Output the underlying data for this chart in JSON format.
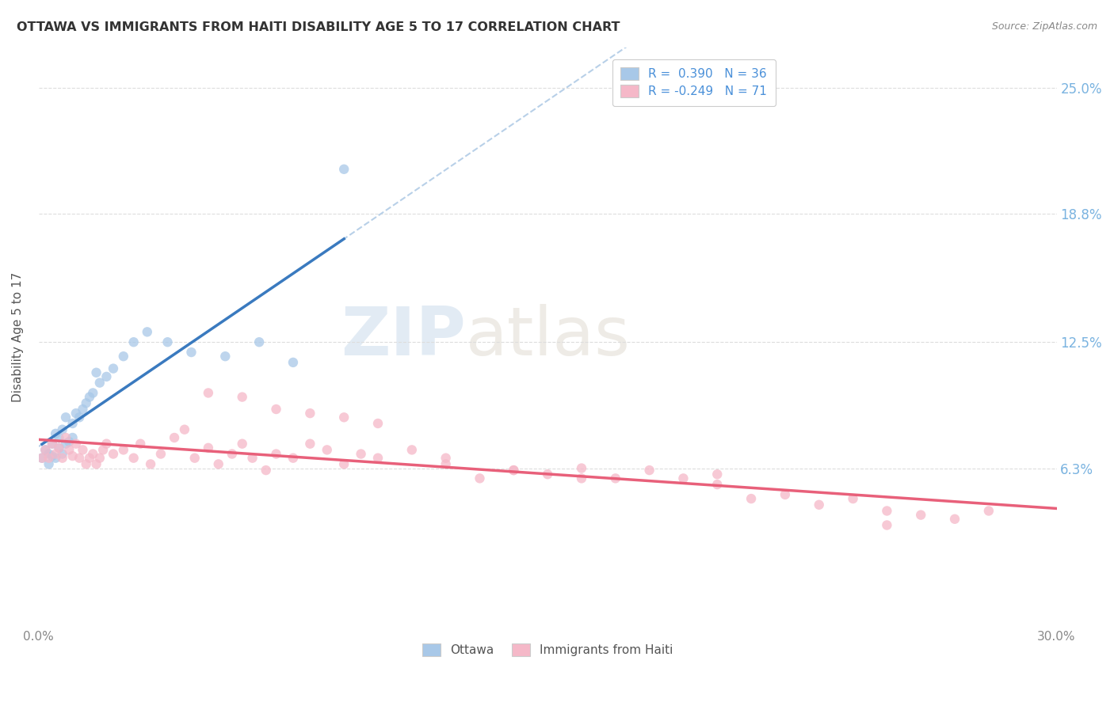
{
  "title": "OTTAWA VS IMMIGRANTS FROM HAITI DISABILITY AGE 5 TO 17 CORRELATION CHART",
  "source": "Source: ZipAtlas.com",
  "ylabel": "Disability Age 5 to 17",
  "yticks": [
    "6.3%",
    "12.5%",
    "18.8%",
    "25.0%"
  ],
  "ytick_vals": [
    0.063,
    0.125,
    0.188,
    0.25
  ],
  "xmin": 0.0,
  "xmax": 0.3,
  "ymin": -0.015,
  "ymax": 0.27,
  "ottawa_color": "#a8c8e8",
  "haiti_color": "#f5b8c8",
  "ottawa_line_color": "#3a7abf",
  "haiti_line_color": "#e8607a",
  "dashed_line_color": "#b8d0e8",
  "background_color": "#ffffff",
  "watermark_zip": "ZIP",
  "watermark_atlas": "atlas",
  "ottawa_x": [
    0.001,
    0.002,
    0.003,
    0.003,
    0.004,
    0.004,
    0.005,
    0.005,
    0.006,
    0.006,
    0.007,
    0.007,
    0.008,
    0.008,
    0.009,
    0.01,
    0.01,
    0.011,
    0.012,
    0.013,
    0.014,
    0.015,
    0.016,
    0.017,
    0.018,
    0.02,
    0.022,
    0.025,
    0.028,
    0.032,
    0.038,
    0.045,
    0.055,
    0.065,
    0.075,
    0.09
  ],
  "ottawa_y": [
    0.068,
    0.072,
    0.065,
    0.07,
    0.069,
    0.075,
    0.068,
    0.08,
    0.073,
    0.078,
    0.07,
    0.082,
    0.075,
    0.088,
    0.076,
    0.085,
    0.078,
    0.09,
    0.088,
    0.092,
    0.095,
    0.098,
    0.1,
    0.11,
    0.105,
    0.108,
    0.112,
    0.118,
    0.125,
    0.13,
    0.125,
    0.12,
    0.118,
    0.125,
    0.115,
    0.21
  ],
  "haiti_x": [
    0.001,
    0.002,
    0.003,
    0.004,
    0.005,
    0.006,
    0.007,
    0.008,
    0.009,
    0.01,
    0.011,
    0.012,
    0.013,
    0.014,
    0.015,
    0.016,
    0.017,
    0.018,
    0.019,
    0.02,
    0.022,
    0.025,
    0.028,
    0.03,
    0.033,
    0.036,
    0.04,
    0.043,
    0.046,
    0.05,
    0.053,
    0.057,
    0.06,
    0.063,
    0.067,
    0.07,
    0.075,
    0.08,
    0.085,
    0.09,
    0.095,
    0.1,
    0.11,
    0.12,
    0.13,
    0.14,
    0.15,
    0.16,
    0.17,
    0.18,
    0.19,
    0.2,
    0.21,
    0.22,
    0.23,
    0.24,
    0.25,
    0.26,
    0.27,
    0.28,
    0.05,
    0.06,
    0.07,
    0.08,
    0.09,
    0.1,
    0.12,
    0.14,
    0.16,
    0.2,
    0.25
  ],
  "haiti_y": [
    0.068,
    0.072,
    0.068,
    0.075,
    0.07,
    0.073,
    0.068,
    0.078,
    0.072,
    0.069,
    0.075,
    0.068,
    0.072,
    0.065,
    0.068,
    0.07,
    0.065,
    0.068,
    0.072,
    0.075,
    0.07,
    0.072,
    0.068,
    0.075,
    0.065,
    0.07,
    0.078,
    0.082,
    0.068,
    0.073,
    0.065,
    0.07,
    0.075,
    0.068,
    0.062,
    0.07,
    0.068,
    0.075,
    0.072,
    0.065,
    0.07,
    0.068,
    0.072,
    0.065,
    0.058,
    0.062,
    0.06,
    0.063,
    0.058,
    0.062,
    0.058,
    0.06,
    0.048,
    0.05,
    0.045,
    0.048,
    0.042,
    0.04,
    0.038,
    0.042,
    0.1,
    0.098,
    0.092,
    0.09,
    0.088,
    0.085,
    0.068,
    0.062,
    0.058,
    0.055,
    0.035
  ]
}
